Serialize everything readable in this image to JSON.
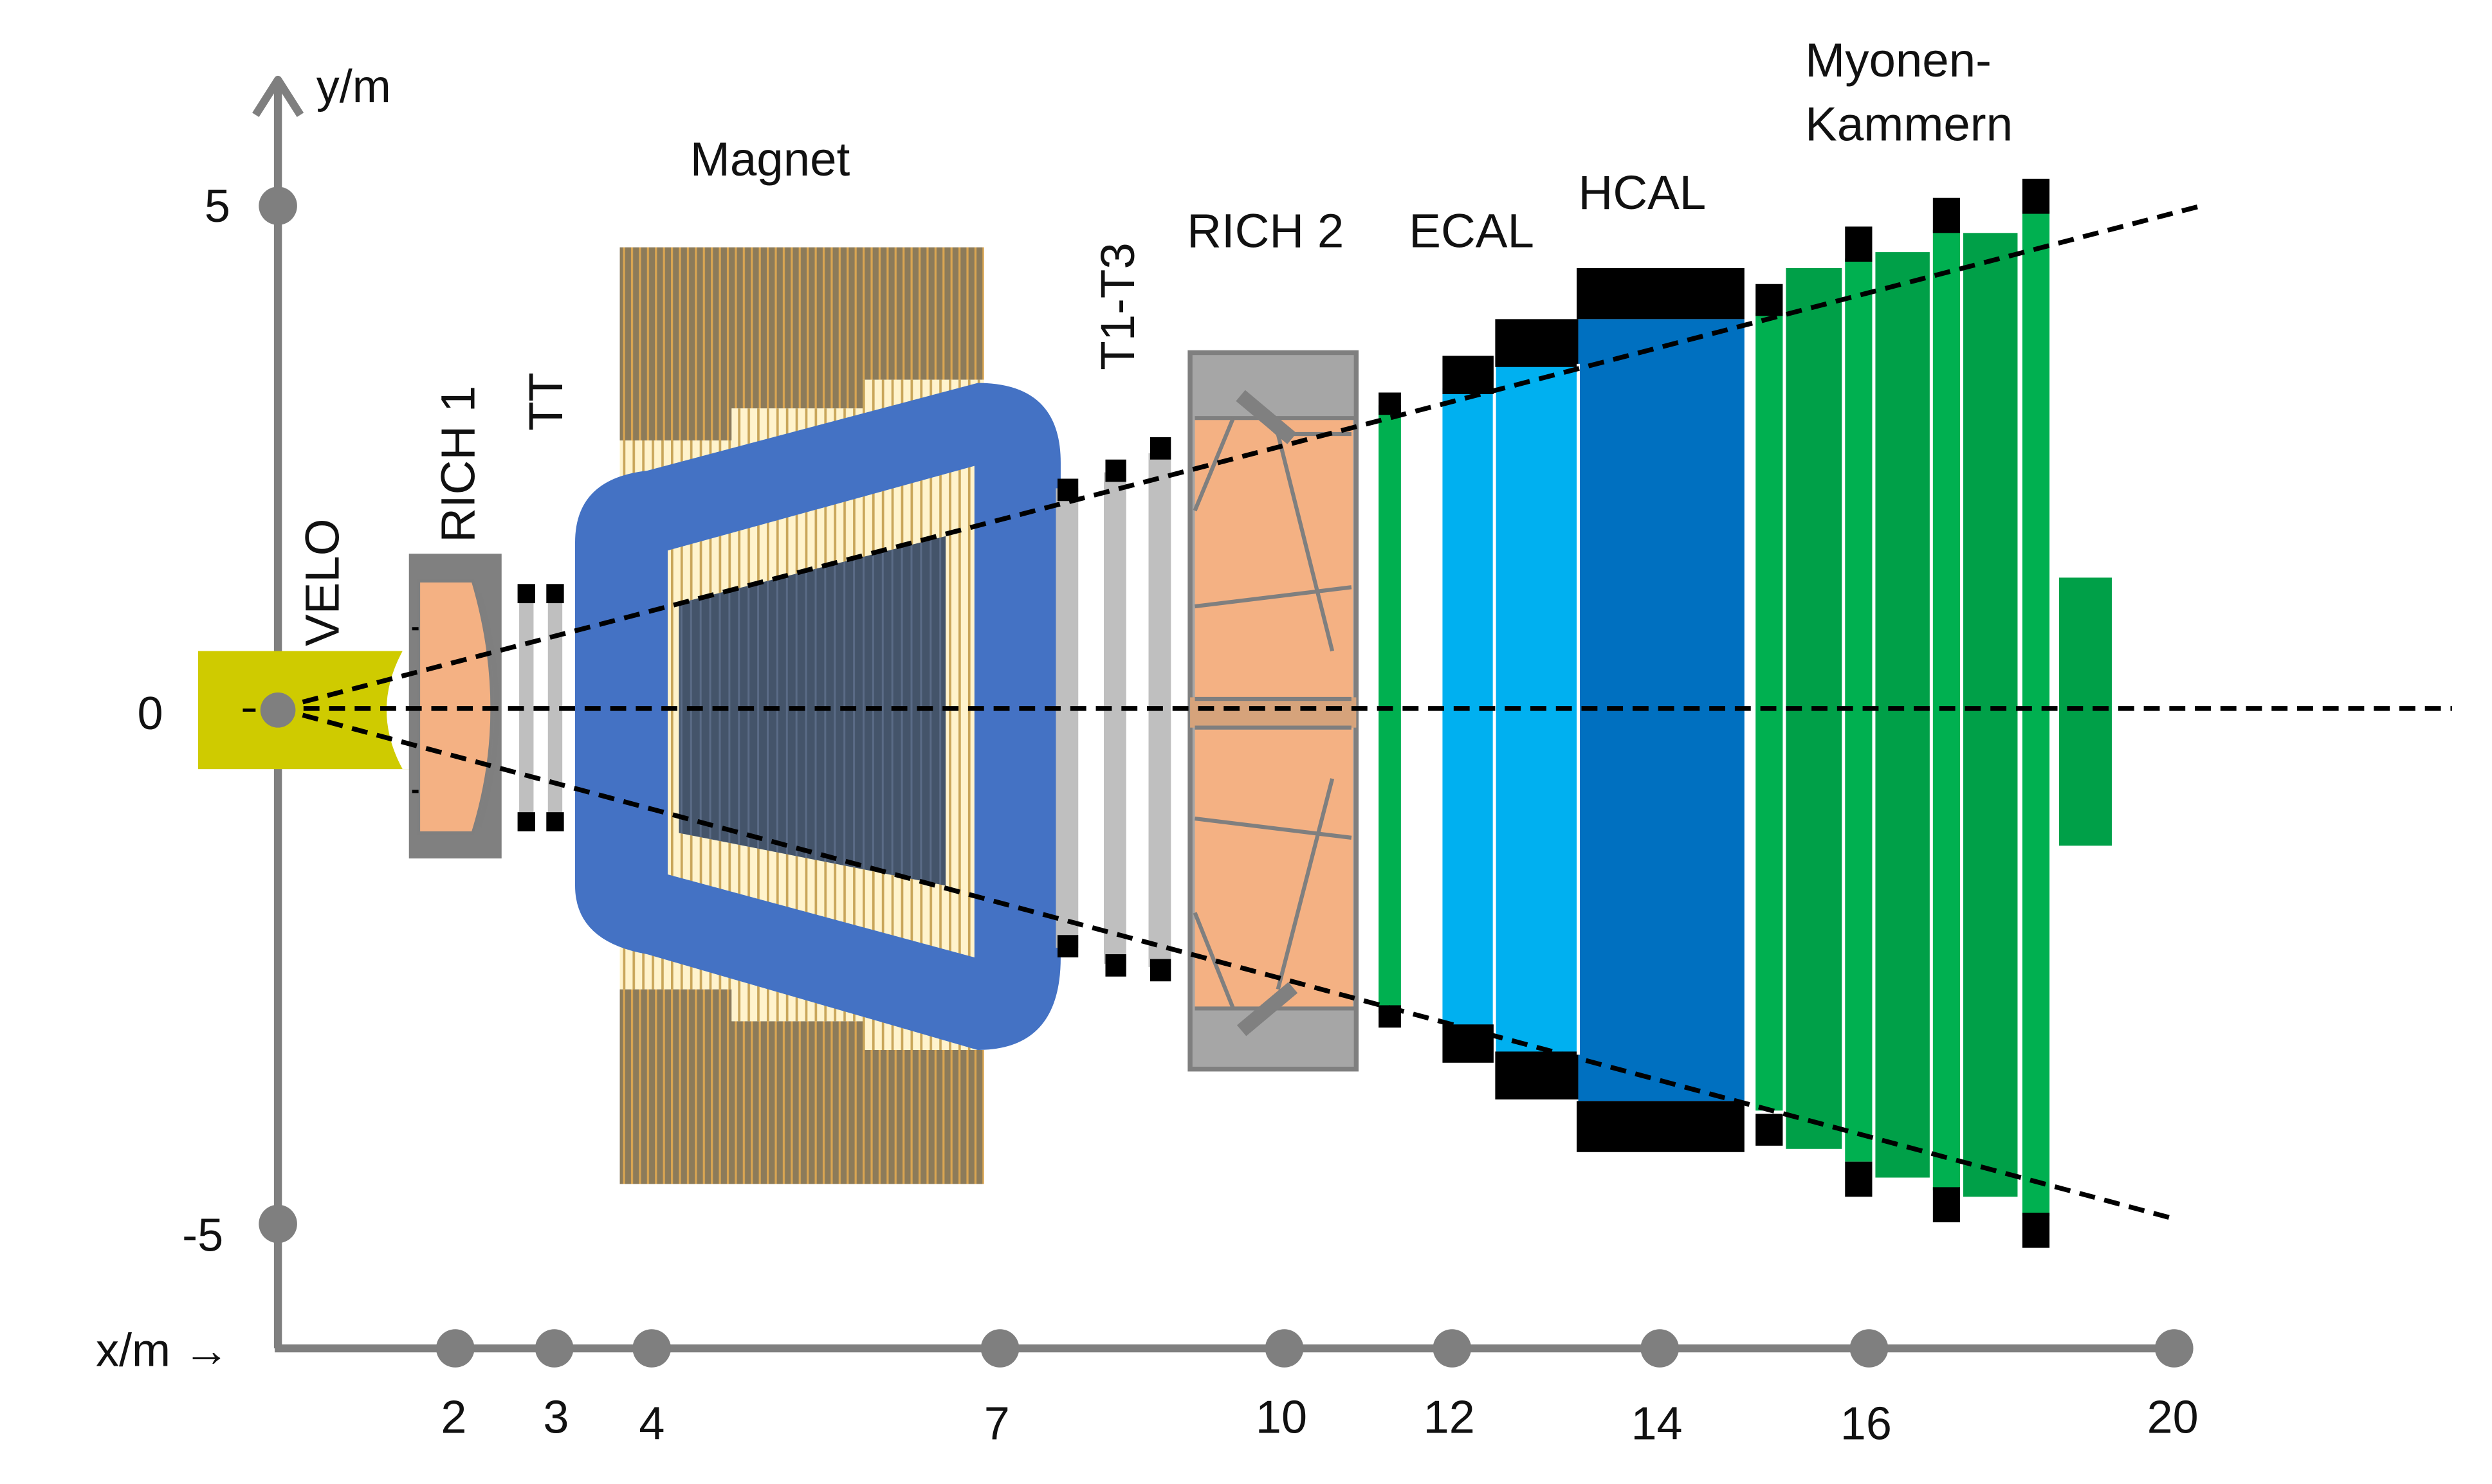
{
  "axes": {
    "y_label": "y/m",
    "x_label": "x/m →",
    "y_ticks": [
      {
        "label": "5",
        "value": 5
      },
      {
        "label": "0",
        "value": 0
      },
      {
        "label": "-5",
        "value": -5
      }
    ],
    "x_ticks": [
      {
        "label": "2",
        "value": 2
      },
      {
        "label": "3",
        "value": 3
      },
      {
        "label": "4",
        "value": 4
      },
      {
        "label": "7",
        "value": 7
      },
      {
        "label": "10",
        "value": 10
      },
      {
        "label": "12",
        "value": 12
      },
      {
        "label": "14",
        "value": 14
      },
      {
        "label": "16",
        "value": 16
      },
      {
        "label": "20",
        "value": 20
      }
    ]
  },
  "labels": {
    "velo": "VELO",
    "rich1": "RICH 1",
    "tt": "TT",
    "magnet": "Magnet",
    "t1t3": "T1-T3",
    "rich2": "RICH 2",
    "ecal": "ECAL",
    "hcal": "HCAL",
    "muon_line1": "Myonen-",
    "muon_line2": "Kammern"
  },
  "colors": {
    "axis": "#7f7f7f",
    "velo": "#cfcb00",
    "rich_gas": "#f4b183",
    "rich_frame": "#808080",
    "rich2_frame": "#a6a6a6",
    "tracker": "#bfbfbf",
    "magnet_yoke": "#8c7b5a",
    "magnet_coil": "#4472c4",
    "magnet_core": "#44546a",
    "ecal": "#00b0f0",
    "hcal": "#0070c0",
    "muon": "#00b050",
    "muon_dark": "#009a44",
    "black": "#000000"
  }
}
